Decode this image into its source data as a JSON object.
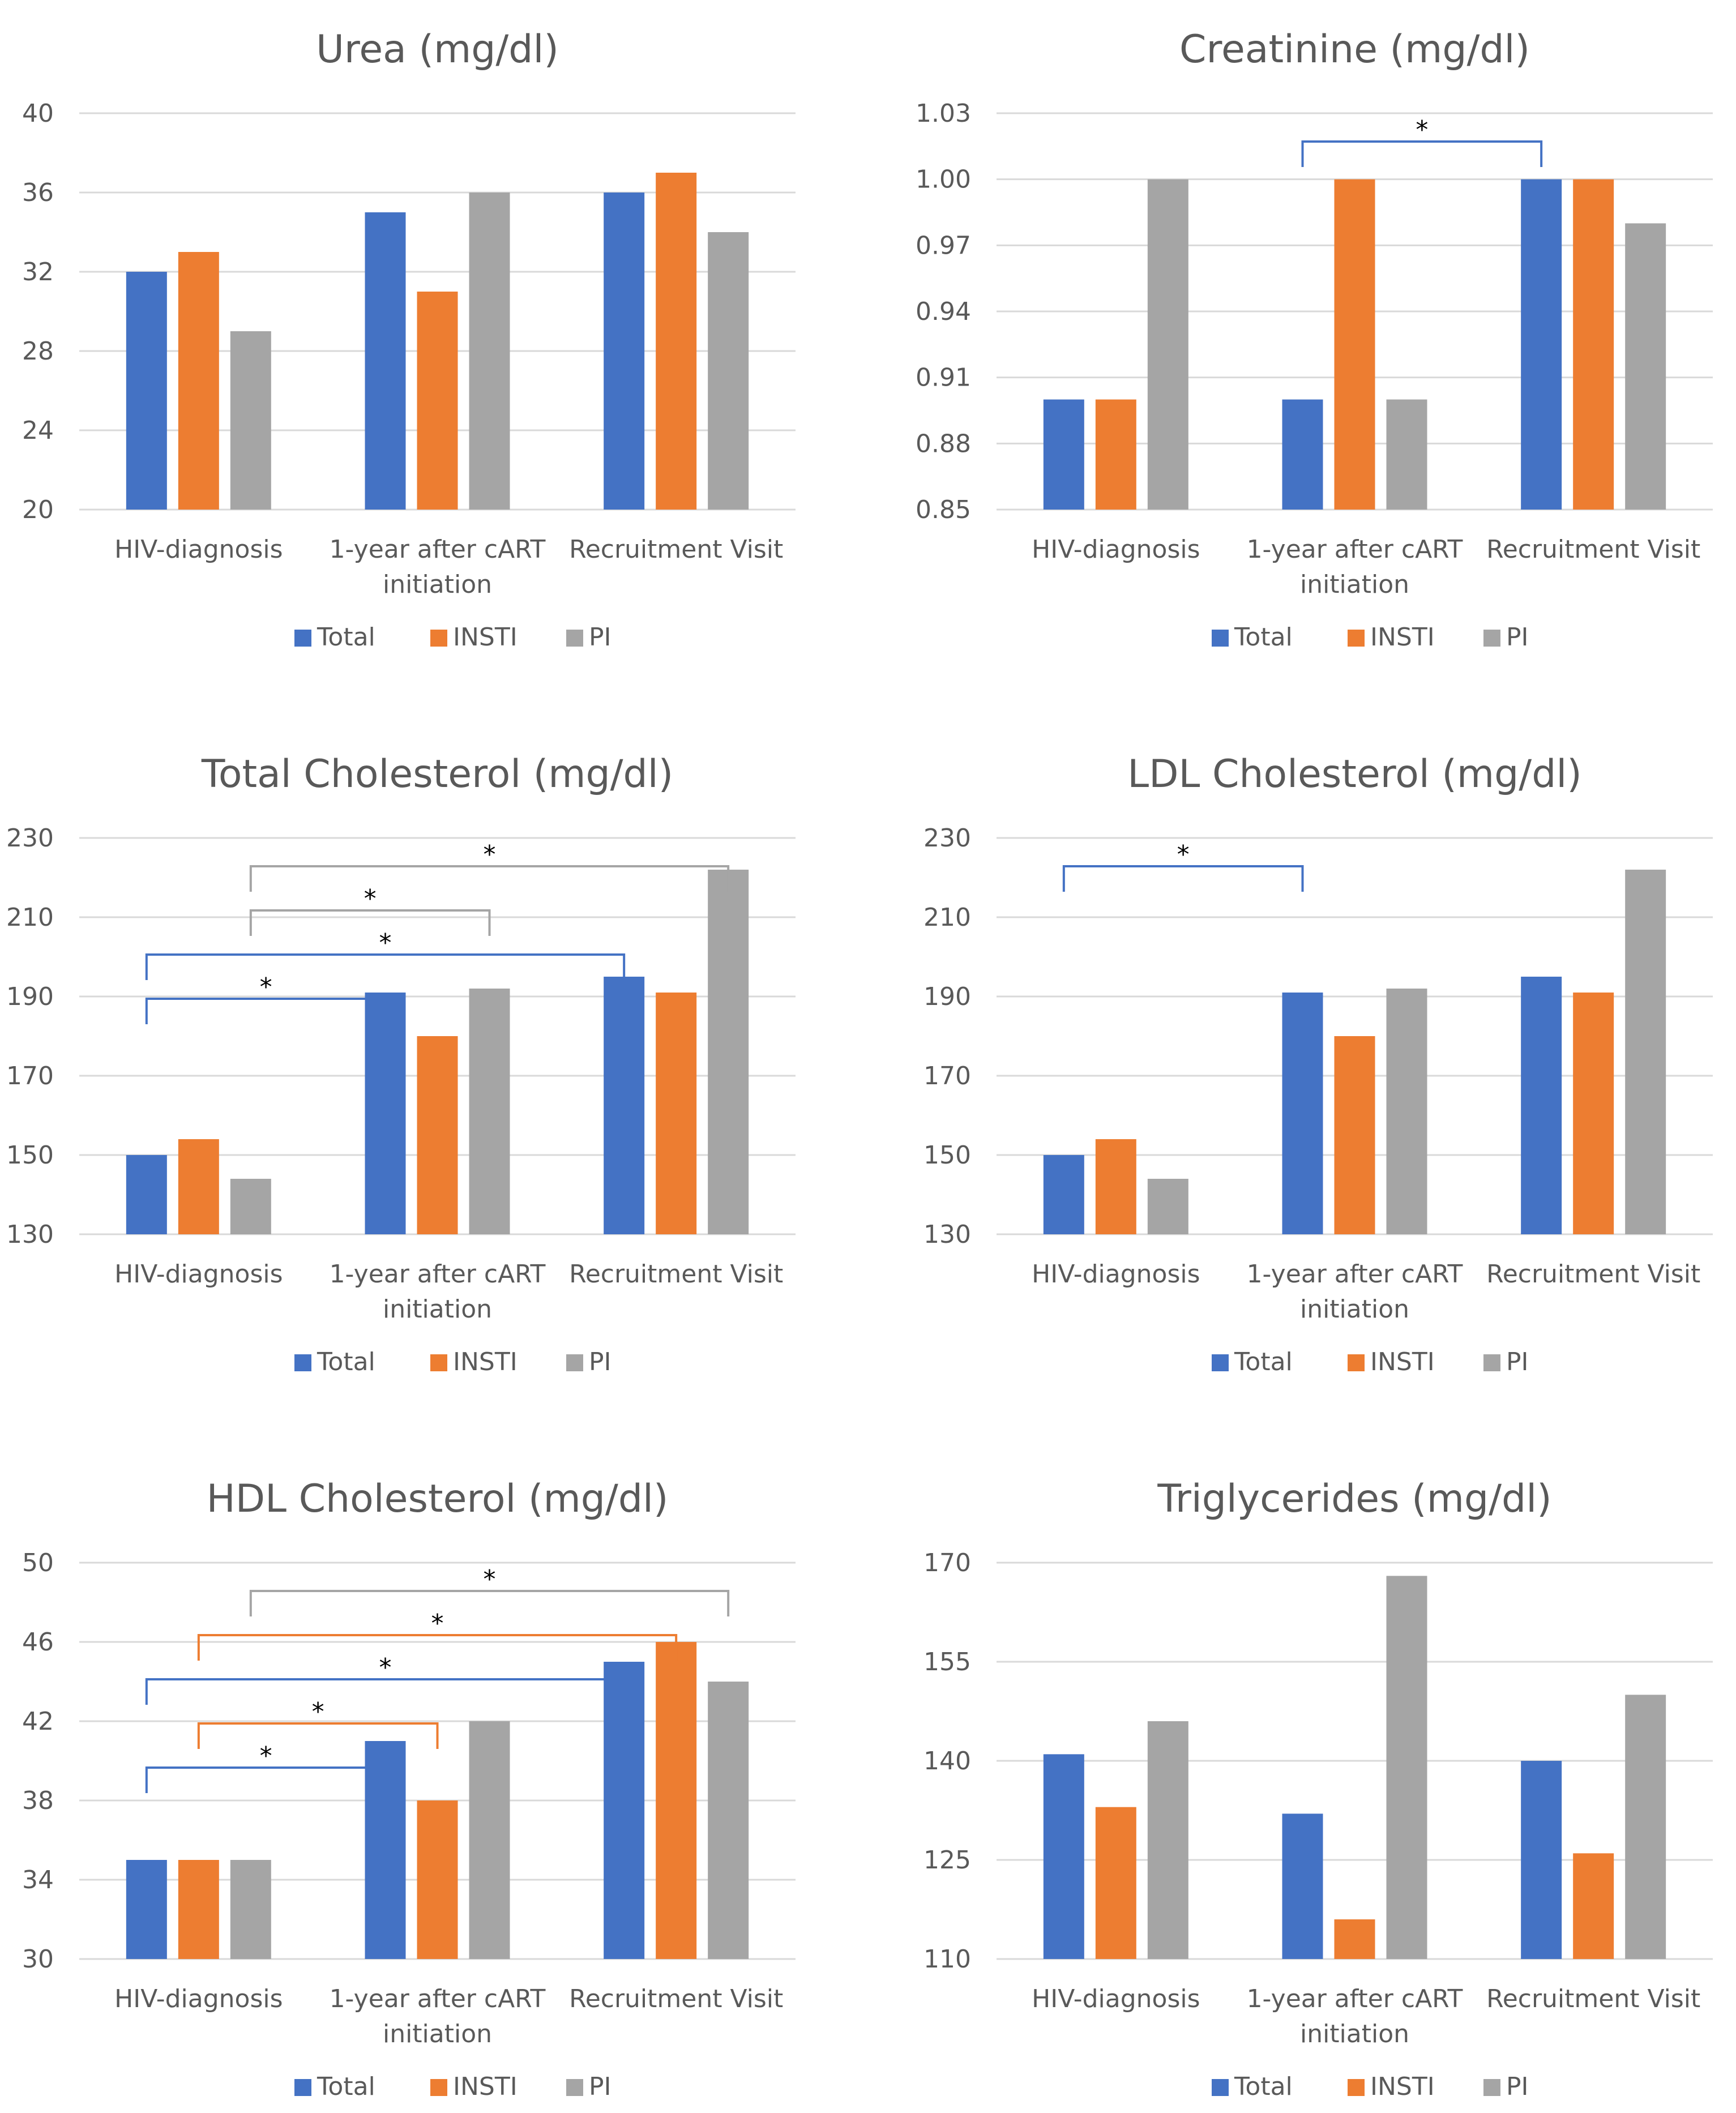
{
  "chart_data": [
    {
      "type": "bar",
      "title": "Urea (mg/dl)",
      "categories": [
        "HIV-diagnosis",
        "1-year after cART initiation",
        "Recruitment Visit"
      ],
      "series": [
        {
          "name": "Total",
          "values": [
            32,
            35,
            36
          ]
        },
        {
          "name": "INSTI",
          "values": [
            33,
            31,
            37
          ]
        },
        {
          "name": "PI",
          "values": [
            29,
            36,
            34
          ]
        }
      ],
      "ylim": [
        20,
        40
      ],
      "yticks": [
        "20",
        "24",
        "28",
        "32",
        "36",
        "40"
      ],
      "xlabel": "",
      "ylabel": "",
      "grid": true,
      "legend": "bottom",
      "significance": []
    },
    {
      "type": "bar",
      "title": "Creatinine (mg/dl)",
      "categories": [
        "HIV-diagnosis",
        "1-year after cART initiation",
        "Recruitment Visit"
      ],
      "series": [
        {
          "name": "Total",
          "values": [
            0.9,
            0.9,
            1.0
          ]
        },
        {
          "name": "INSTI",
          "values": [
            0.9,
            1.0,
            1.0
          ]
        },
        {
          "name": "PI",
          "values": [
            1.0,
            0.9,
            0.98
          ]
        }
      ],
      "ylim": [
        0.85,
        1.03
      ],
      "yticks": [
        "0.85",
        "0.88",
        "0.91",
        "0.94",
        "0.97",
        "1.00",
        "1.03"
      ],
      "xlabel": "",
      "ylabel": "",
      "grid": true,
      "legend": "bottom",
      "significance": [
        {
          "series": 0,
          "from": 1,
          "to": 2,
          "label": "*"
        }
      ]
    },
    {
      "type": "bar",
      "title": "Total Cholesterol (mg/dl)",
      "categories": [
        "HIV-diagnosis",
        "1-year after cART initiation",
        "Recruitment Visit"
      ],
      "series": [
        {
          "name": "Total",
          "values": [
            150,
            191,
            195
          ]
        },
        {
          "name": "INSTI",
          "values": [
            154,
            180,
            191
          ]
        },
        {
          "name": "PI",
          "values": [
            144,
            192,
            222
          ]
        }
      ],
      "ylim": [
        130,
        230
      ],
      "yticks": [
        "130",
        "150",
        "170",
        "190",
        "210",
        "230"
      ],
      "xlabel": "",
      "ylabel": "",
      "grid": true,
      "legend": "bottom",
      "significance": [
        {
          "series": 2,
          "from": 0,
          "to": 2,
          "label": "*"
        },
        {
          "series": 2,
          "from": 0,
          "to": 1,
          "label": "*"
        },
        {
          "series": 0,
          "from": 0,
          "to": 2,
          "label": "*"
        },
        {
          "series": 0,
          "from": 0,
          "to": 1,
          "label": "*"
        }
      ]
    },
    {
      "type": "bar",
      "title": "LDL Cholesterol (mg/dl)",
      "categories": [
        "HIV-diagnosis",
        "1-year after cART initiation",
        "Recruitment Visit"
      ],
      "series": [
        {
          "name": "Total",
          "values": [
            150,
            191,
            195
          ]
        },
        {
          "name": "INSTI",
          "values": [
            154,
            180,
            191
          ]
        },
        {
          "name": "PI",
          "values": [
            144,
            192,
            222
          ]
        }
      ],
      "ylim": [
        130,
        230
      ],
      "yticks": [
        "130",
        "150",
        "170",
        "190",
        "210",
        "230"
      ],
      "xlabel": "",
      "ylabel": "",
      "grid": true,
      "legend": "bottom",
      "significance": [
        {
          "series": 0,
          "from": 0,
          "to": 1,
          "label": "*"
        }
      ]
    },
    {
      "type": "bar",
      "title": "HDL Cholesterol (mg/dl)",
      "categories": [
        "HIV-diagnosis",
        "1-year after cART initiation",
        "Recruitment Visit"
      ],
      "series": [
        {
          "name": "Total",
          "values": [
            35,
            41,
            45
          ]
        },
        {
          "name": "INSTI",
          "values": [
            35,
            38,
            46
          ]
        },
        {
          "name": "PI",
          "values": [
            35,
            42,
            44
          ]
        }
      ],
      "ylim": [
        30,
        50
      ],
      "yticks": [
        "30",
        "34",
        "38",
        "42",
        "46",
        "50"
      ],
      "xlabel": "",
      "ylabel": "",
      "grid": true,
      "legend": "bottom",
      "significance": [
        {
          "series": 2,
          "from": 0,
          "to": 2,
          "label": "*"
        },
        {
          "series": 1,
          "from": 0,
          "to": 2,
          "label": "*"
        },
        {
          "series": 0,
          "from": 0,
          "to": 2,
          "label": "*"
        },
        {
          "series": 1,
          "from": 0,
          "to": 1,
          "label": "*"
        },
        {
          "series": 0,
          "from": 0,
          "to": 1,
          "label": "*"
        }
      ]
    },
    {
      "type": "bar",
      "title": "Triglycerides (mg/dl)",
      "categories": [
        "HIV-diagnosis",
        "1-year after cART initiation",
        "Recruitment Visit"
      ],
      "series": [
        {
          "name": "Total",
          "values": [
            141,
            132,
            140
          ]
        },
        {
          "name": "INSTI",
          "values": [
            133,
            116,
            126
          ]
        },
        {
          "name": "PI",
          "values": [
            146,
            168,
            150
          ]
        }
      ],
      "ylim": [
        110,
        170
      ],
      "yticks": [
        "110",
        "125",
        "140",
        "155",
        "170"
      ],
      "xlabel": "",
      "ylabel": "",
      "grid": true,
      "legend": "bottom",
      "significance": []
    }
  ],
  "colors": {
    "series": [
      "#4472C4",
      "#ED7D31",
      "#A5A5A5"
    ],
    "grid": "#D9D9D9",
    "text": "#595959"
  }
}
